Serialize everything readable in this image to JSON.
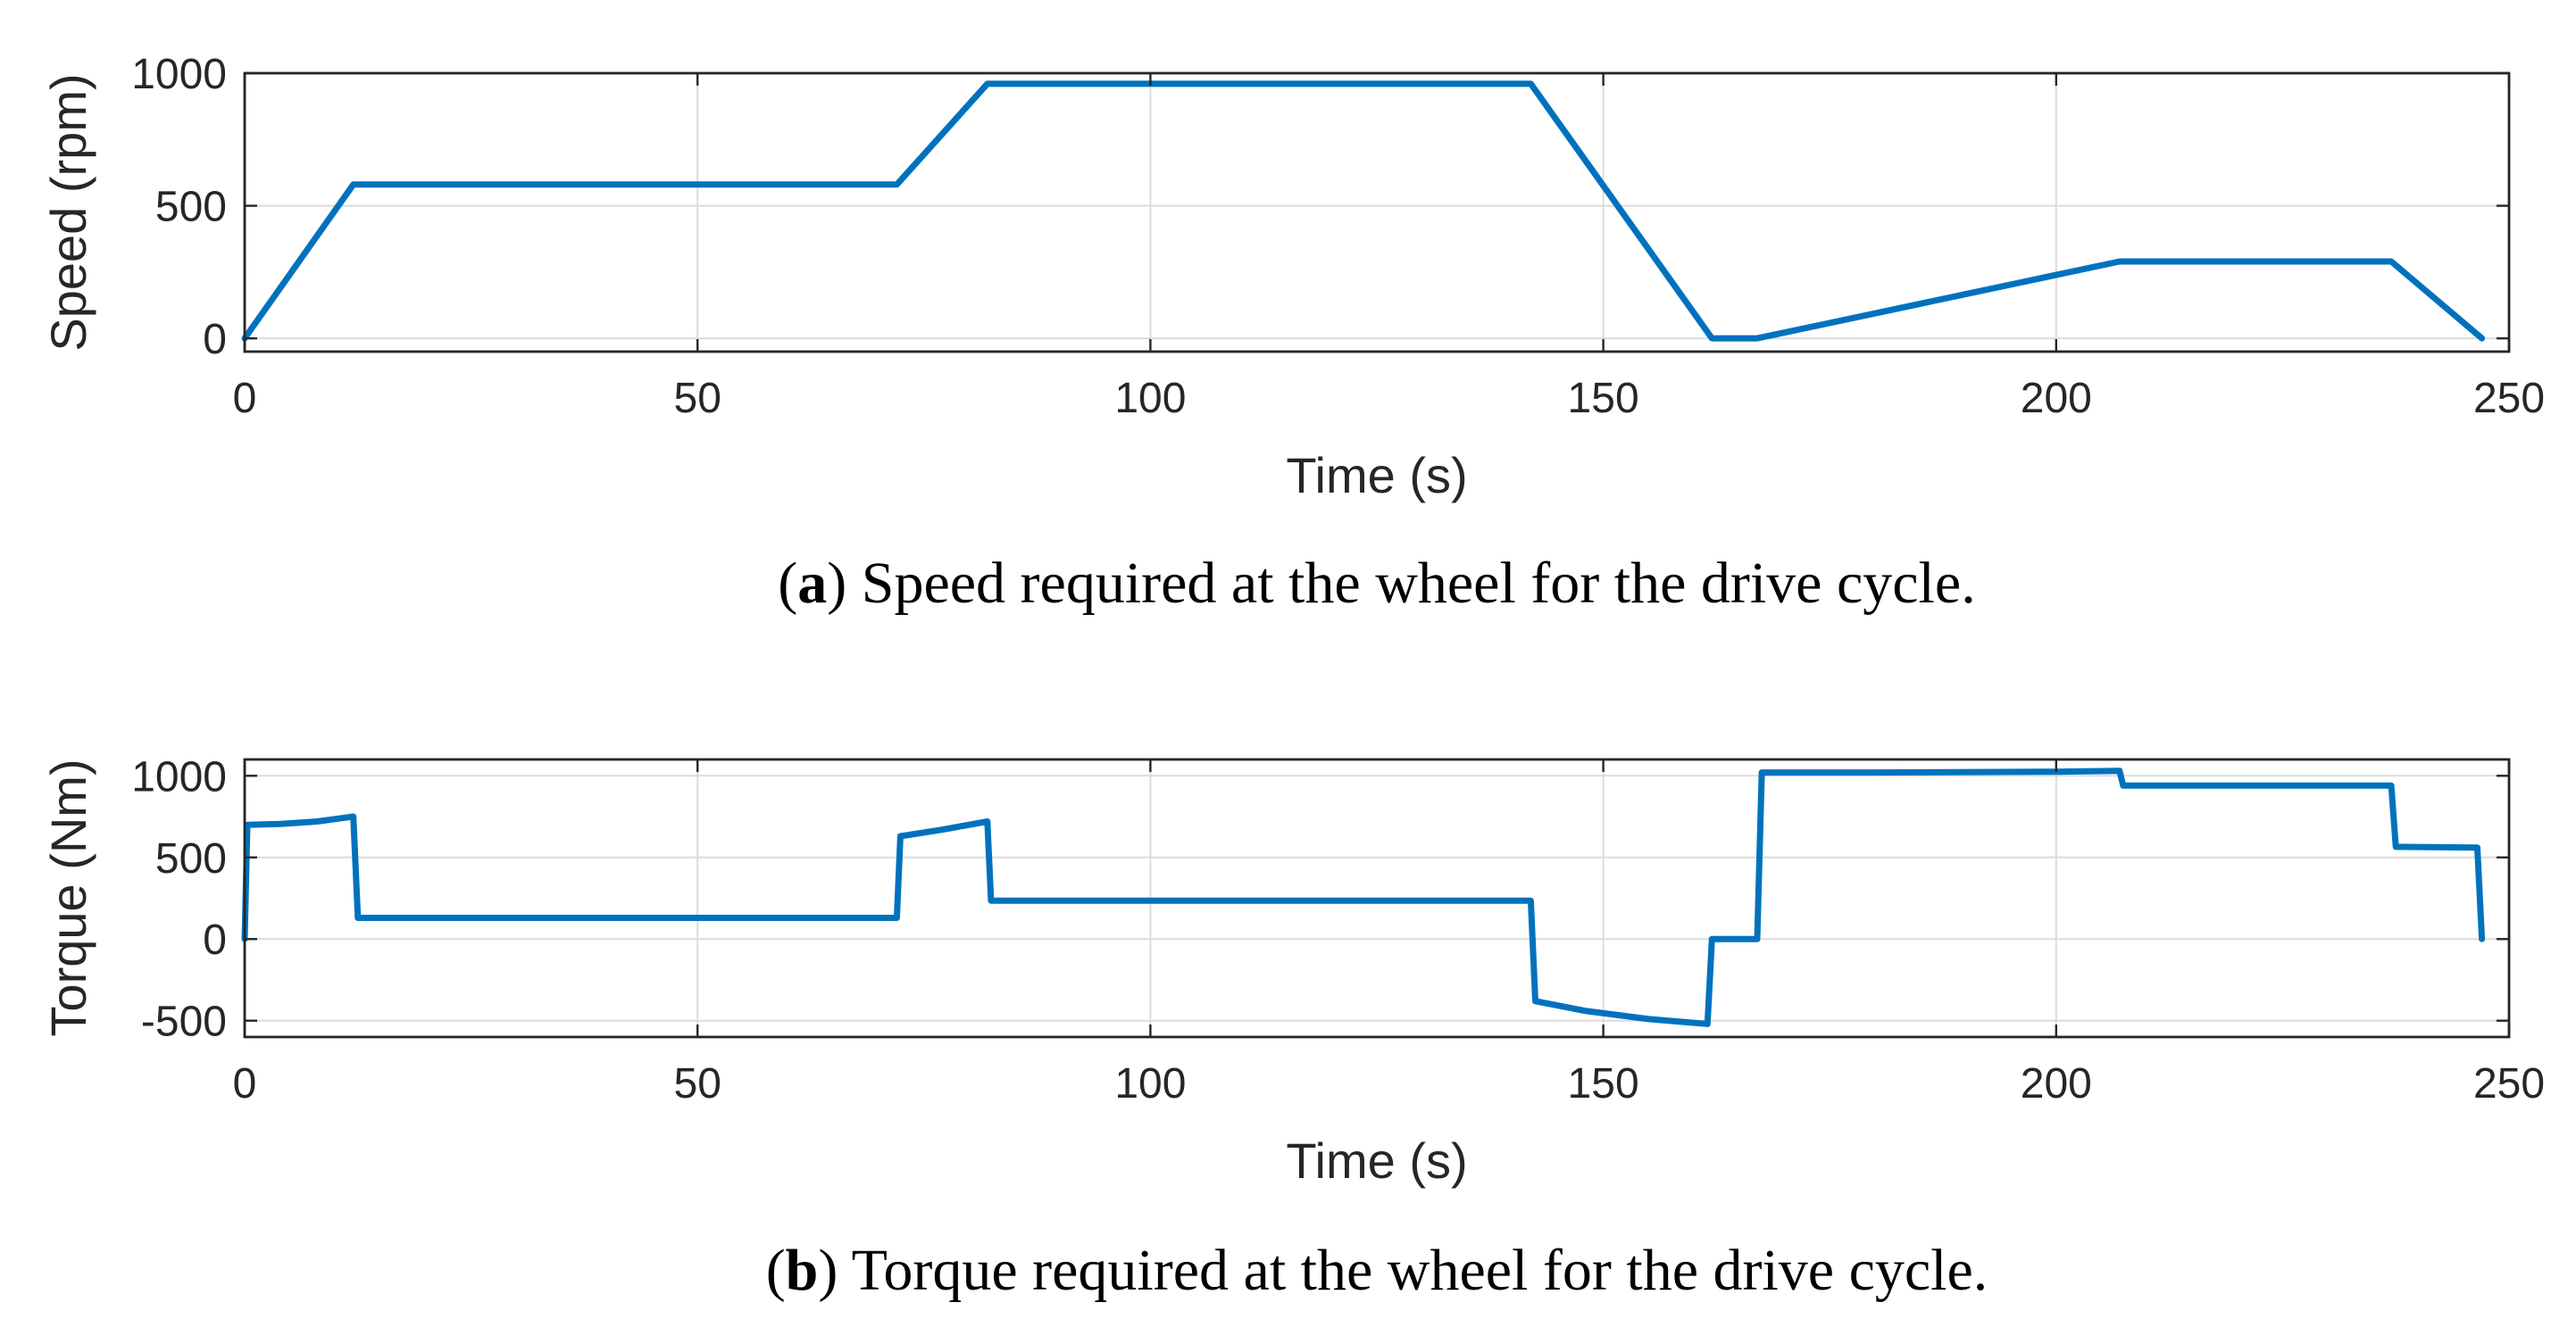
{
  "colors": {
    "series": "#0072BD",
    "axis": "#262626",
    "grid": "#dcdcdc"
  },
  "chart_data": [
    {
      "type": "line",
      "title": "",
      "xlabel": "Time (s)",
      "ylabel": "Speed (rpm)",
      "xlim": [
        0,
        250
      ],
      "ylim": [
        -50,
        1000
      ],
      "xticks": [
        0,
        50,
        100,
        150,
        200,
        250
      ],
      "yticks": [
        0,
        500,
        1000
      ],
      "grid": true,
      "series": [
        {
          "x": [
            0,
            12,
            72,
            82,
            142,
            162,
            167,
            207,
            237,
            247
          ],
          "y": [
            0,
            580,
            580,
            960,
            960,
            0,
            0,
            290,
            290,
            0
          ]
        }
      ],
      "caption": {
        "letter": "a",
        "open": "(",
        "close": ")",
        "text": " Speed required at the wheel for the drive cycle."
      }
    },
    {
      "type": "line",
      "title": "",
      "xlabel": "Time (s)",
      "ylabel": "Torque (Nm)",
      "xlim": [
        0,
        250
      ],
      "ylim": [
        -600,
        1100
      ],
      "xticks": [
        0,
        50,
        100,
        150,
        200,
        250
      ],
      "yticks": [
        -500,
        0,
        500,
        1000
      ],
      "grid": true,
      "series": [
        {
          "x": [
            0,
            0.3,
            4,
            8,
            12,
            12.5,
            72,
            72.4,
            77,
            82,
            82.4,
            142,
            142.5,
            148,
            155,
            161.5,
            162,
            167,
            167.5,
            180,
            200,
            207,
            207.4,
            237,
            237.5,
            246.5,
            247
          ],
          "y": [
            0,
            700,
            705,
            720,
            750,
            130,
            130,
            630,
            670,
            720,
            235,
            235,
            -380,
            -440,
            -490,
            -520,
            0,
            0,
            1020,
            1020,
            1025,
            1030,
            940,
            940,
            565,
            560,
            0
          ]
        }
      ],
      "caption": {
        "letter": "b",
        "open": "(",
        "close": ")",
        "text": " Torque required at the wheel for the drive cycle."
      }
    }
  ]
}
